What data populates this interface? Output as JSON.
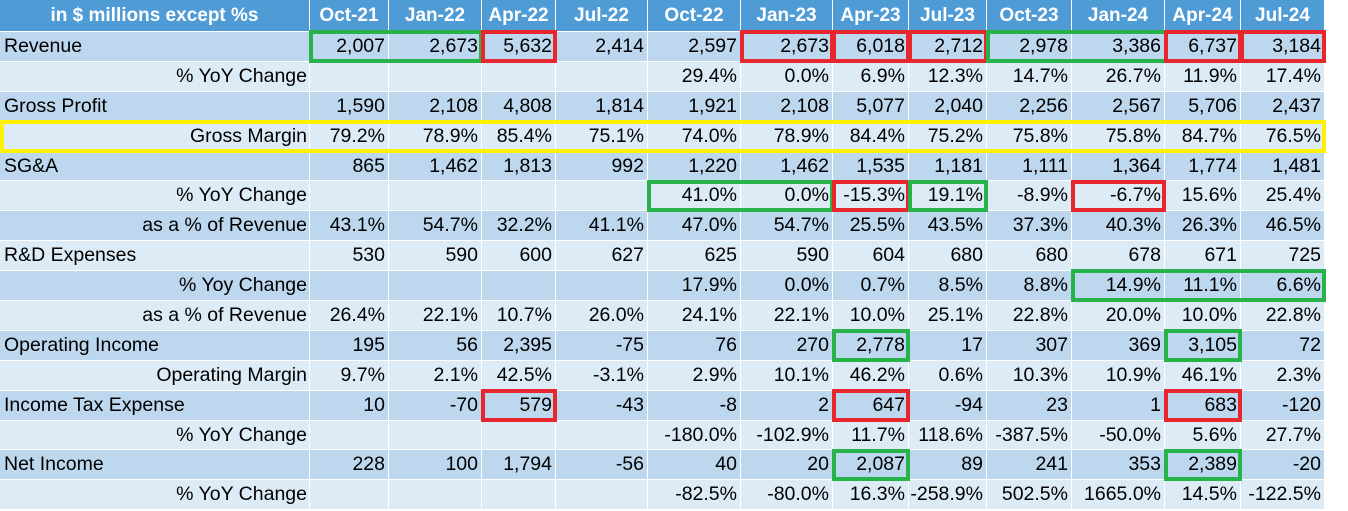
{
  "table": {
    "corner": "in $ millions except %s",
    "periods": [
      "Oct-21",
      "Jan-22",
      "Apr-22",
      "Jul-22",
      "Oct-22",
      "Jan-23",
      "Apr-23",
      "Jul-23",
      "Oct-23",
      "Jan-24",
      "Apr-24",
      "Jul-24"
    ],
    "rows": [
      {
        "label": "Revenue",
        "indent": false,
        "values": [
          "2,007",
          "2,673",
          "5,632",
          "2,414",
          "2,597",
          "2,673",
          "6,018",
          "2,712",
          "2,978",
          "3,386",
          "6,737",
          "3,184"
        ]
      },
      {
        "label": "% YoY Change",
        "indent": true,
        "values": [
          "",
          "",
          "",
          "",
          "29.4%",
          "0.0%",
          "6.9%",
          "12.3%",
          "14.7%",
          "26.7%",
          "11.9%",
          "17.4%"
        ]
      },
      {
        "label": "Gross Profit",
        "indent": false,
        "values": [
          "1,590",
          "2,108",
          "4,808",
          "1,814",
          "1,921",
          "2,108",
          "5,077",
          "2,040",
          "2,256",
          "2,567",
          "5,706",
          "2,437"
        ]
      },
      {
        "label": "Gross Margin",
        "indent": true,
        "values": [
          "79.2%",
          "78.9%",
          "85.4%",
          "75.1%",
          "74.0%",
          "78.9%",
          "84.4%",
          "75.2%",
          "75.8%",
          "75.8%",
          "84.7%",
          "76.5%"
        ]
      },
      {
        "label": "SG&A",
        "indent": false,
        "values": [
          "865",
          "1,462",
          "1,813",
          "992",
          "1,220",
          "1,462",
          "1,535",
          "1,181",
          "1,111",
          "1,364",
          "1,774",
          "1,481"
        ]
      },
      {
        "label": "% YoY Change",
        "indent": true,
        "values": [
          "",
          "",
          "",
          "",
          "41.0%",
          "0.0%",
          "-15.3%",
          "19.1%",
          "-8.9%",
          "-6.7%",
          "15.6%",
          "25.4%"
        ]
      },
      {
        "label": "as a % of Revenue",
        "indent": true,
        "values": [
          "43.1%",
          "54.7%",
          "32.2%",
          "41.1%",
          "47.0%",
          "54.7%",
          "25.5%",
          "43.5%",
          "37.3%",
          "40.3%",
          "26.3%",
          "46.5%"
        ]
      },
      {
        "label": "R&D Expenses",
        "indent": false,
        "values": [
          "530",
          "590",
          "600",
          "627",
          "625",
          "590",
          "604",
          "680",
          "680",
          "678",
          "671",
          "725"
        ]
      },
      {
        "label": "% Yoy Change",
        "indent": true,
        "values": [
          "",
          "",
          "",
          "",
          "17.9%",
          "0.0%",
          "0.7%",
          "8.5%",
          "8.8%",
          "14.9%",
          "11.1%",
          "6.6%"
        ]
      },
      {
        "label": "as a % of Revenue",
        "indent": true,
        "values": [
          "26.4%",
          "22.1%",
          "10.7%",
          "26.0%",
          "24.1%",
          "22.1%",
          "10.0%",
          "25.1%",
          "22.8%",
          "20.0%",
          "10.0%",
          "22.8%"
        ]
      },
      {
        "label": "Operating Income",
        "indent": false,
        "values": [
          "195",
          "56",
          "2,395",
          "-75",
          "76",
          "270",
          "2,778",
          "17",
          "307",
          "369",
          "3,105",
          "72"
        ]
      },
      {
        "label": "Operating Margin",
        "indent": true,
        "values": [
          "9.7%",
          "2.1%",
          "42.5%",
          "-3.1%",
          "2.9%",
          "10.1%",
          "46.2%",
          "0.6%",
          "10.3%",
          "10.9%",
          "46.1%",
          "2.3%"
        ]
      },
      {
        "label": "Income Tax Expense",
        "indent": false,
        "values": [
          "10",
          "-70",
          "579",
          "-43",
          "-8",
          "2",
          "647",
          "-94",
          "23",
          "1",
          "683",
          "-120"
        ]
      },
      {
        "label": "% YoY Change",
        "indent": true,
        "values": [
          "",
          "",
          "",
          "",
          "-180.0%",
          "-102.9%",
          "11.7%",
          "118.6%",
          "-387.5%",
          "-50.0%",
          "5.6%",
          "27.7%"
        ]
      },
      {
        "label": "Net Income",
        "indent": false,
        "values": [
          "228",
          "100",
          "1,794",
          "-56",
          "40",
          "20",
          "2,087",
          "89",
          "241",
          "353",
          "2,389",
          "-20"
        ]
      },
      {
        "label": "% YoY Change",
        "indent": true,
        "values": [
          "",
          "",
          "",
          "",
          "-82.5%",
          "-80.0%",
          "16.3%",
          "-258.9%",
          "502.5%",
          "1665.0%",
          "14.5%",
          "-122.5%"
        ]
      }
    ]
  },
  "highlights": [
    {
      "color": "green",
      "row": 0,
      "col_start": 1,
      "col_end": 2
    },
    {
      "color": "red",
      "row": 0,
      "col_start": 3,
      "col_end": 3
    },
    {
      "color": "red",
      "row": 0,
      "col_start": 6,
      "col_end": 6
    },
    {
      "color": "red",
      "row": 0,
      "col_start": 7,
      "col_end": 7
    },
    {
      "color": "red",
      "row": 0,
      "col_start": 8,
      "col_end": 8
    },
    {
      "color": "green",
      "row": 0,
      "col_start": 9,
      "col_end": 11
    },
    {
      "color": "red",
      "row": 0,
      "col_start": 11,
      "col_end": 11
    },
    {
      "color": "red",
      "row": 0,
      "col_start": 12,
      "col_end": 12
    },
    {
      "color": "yellow",
      "row": 3,
      "col_start": 0,
      "col_end": 12
    },
    {
      "color": "green",
      "row": 5,
      "col_start": 5,
      "col_end": 6
    },
    {
      "color": "red",
      "row": 5,
      "col_start": 7,
      "col_end": 7
    },
    {
      "color": "green",
      "row": 5,
      "col_start": 8,
      "col_end": 8
    },
    {
      "color": "red",
      "row": 5,
      "col_start": 10,
      "col_end": 10
    },
    {
      "color": "green",
      "row": 8,
      "col_start": 10,
      "col_end": 12
    },
    {
      "color": "green",
      "row": 10,
      "col_start": 7,
      "col_end": 7
    },
    {
      "color": "green",
      "row": 10,
      "col_start": 11,
      "col_end": 11
    },
    {
      "color": "red",
      "row": 12,
      "col_start": 3,
      "col_end": 3
    },
    {
      "color": "red",
      "row": 12,
      "col_start": 7,
      "col_end": 7
    },
    {
      "color": "red",
      "row": 12,
      "col_start": 11,
      "col_end": 11
    },
    {
      "color": "green",
      "row": 14,
      "col_start": 7,
      "col_end": 7
    },
    {
      "color": "green",
      "row": 14,
      "col_start": 11,
      "col_end": 11
    }
  ],
  "colors": {
    "header_bg": "#4f9bd6",
    "row_dark": "#bdd7ee",
    "row_light": "#ddebf7",
    "green_box": "#27b24a",
    "red_box": "#e8262d",
    "yellow_box": "#fff200"
  }
}
